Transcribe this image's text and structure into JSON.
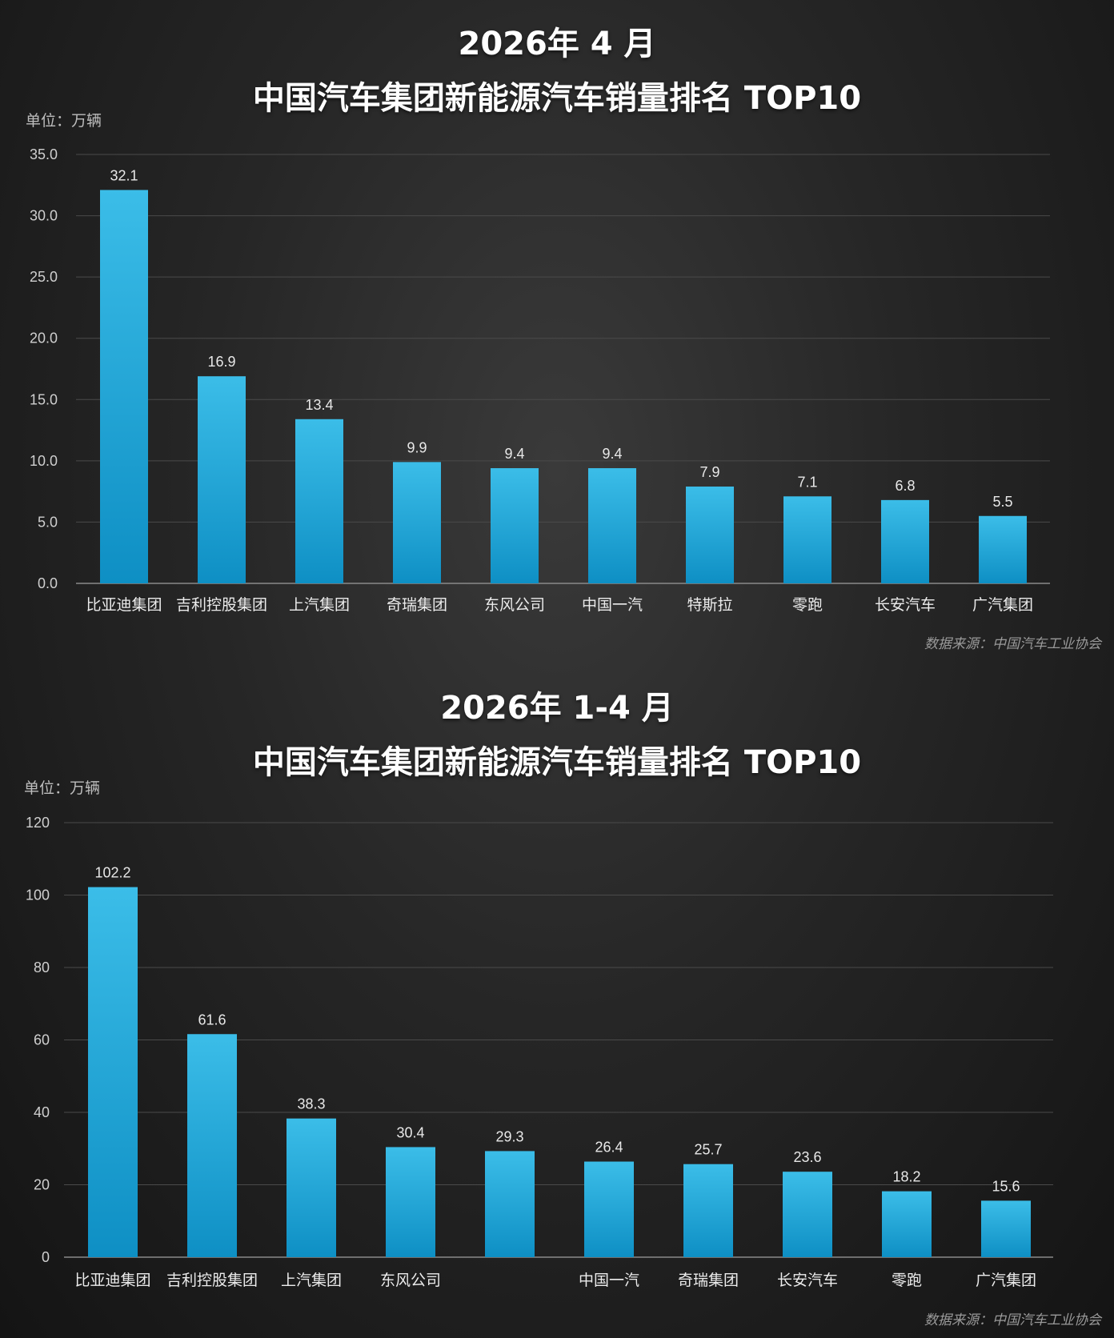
{
  "colors": {
    "bar_top": "#3bbde8",
    "bar_bottom": "#0e8fc4",
    "grid": "#4a4a4a",
    "axis": "#8a8a8a"
  },
  "chart_data": [
    {
      "type": "bar",
      "title_line1": "2026年 4 月",
      "title_line2": "中国汽车集团新能源汽车销量排名  TOP10",
      "unit_label": "单位：万辆",
      "source": "数据来源：中国汽车工业协会",
      "categories": [
        "比亚迪集团",
        "吉利控股集团",
        "上汽集团",
        "奇瑞集团",
        "东风公司",
        "中国一汽",
        "特斯拉",
        "零跑",
        "长安汽车",
        "广汽集团"
      ],
      "values": [
        32.1,
        16.9,
        13.4,
        9.9,
        9.4,
        9.4,
        7.9,
        7.1,
        6.8,
        5.5
      ],
      "value_labels": [
        "32.1",
        "16.9",
        "13.4",
        "9.9",
        "9.4",
        "9.4",
        "7.9",
        "7.1",
        "6.8",
        "5.5"
      ],
      "yticks": [
        "0.0",
        "5.0",
        "10.0",
        "15.0",
        "20.0",
        "25.0",
        "30.0",
        "35.0"
      ],
      "ylim": [
        0,
        35
      ],
      "grid": true
    },
    {
      "type": "bar",
      "title_line1": "2026年 1-4 月",
      "title_line2": "中国汽车集团新能源汽车销量排名  TOP10",
      "unit_label": "单位：万辆",
      "source": "数据来源：中国汽车工业协会",
      "categories": [
        "比亚迪集团",
        "吉利控股集团",
        "上汽集团",
        "东风公司",
        "",
        "中国一汽",
        "奇瑞集团",
        "长安汽车",
        "零跑",
        "广汽集团"
      ],
      "values": [
        102.2,
        61.6,
        38.3,
        30.4,
        29.3,
        26.4,
        25.7,
        23.6,
        18.2,
        15.6
      ],
      "value_labels": [
        "102.2",
        "61.6",
        "38.3",
        "30.4",
        "29.3",
        "26.4",
        "25.7",
        "23.6",
        "18.2",
        "15.6"
      ],
      "yticks": [
        "0",
        "20",
        "40",
        "60",
        "80",
        "100",
        "120"
      ],
      "ylim": [
        0,
        120
      ],
      "grid": true
    }
  ]
}
